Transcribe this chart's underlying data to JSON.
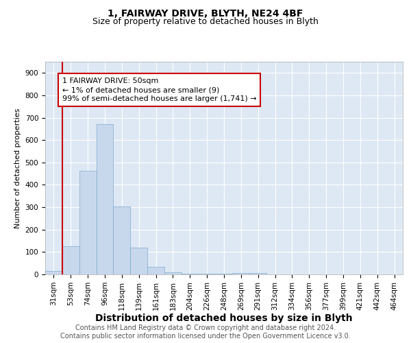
{
  "title_line1": "1, FAIRWAY DRIVE, BLYTH, NE24 4BF",
  "title_line2": "Size of property relative to detached houses in Blyth",
  "xlabel": "Distribution of detached houses by size in Blyth",
  "ylabel": "Number of detached properties",
  "bin_labels": [
    "31sqm",
    "53sqm",
    "74sqm",
    "96sqm",
    "118sqm",
    "139sqm",
    "161sqm",
    "183sqm",
    "204sqm",
    "226sqm",
    "248sqm",
    "269sqm",
    "291sqm",
    "312sqm",
    "334sqm",
    "356sqm",
    "377sqm",
    "399sqm",
    "421sqm",
    "442sqm",
    "464sqm"
  ],
  "bar_values": [
    15,
    125,
    462,
    672,
    302,
    120,
    35,
    10,
    2,
    2,
    2,
    5,
    5,
    0,
    0,
    0,
    0,
    0,
    0,
    0,
    0
  ],
  "bar_color": "#c8d8ec",
  "bar_edge_color": "#7baad0",
  "background_color": "#dde8f4",
  "grid_color": "#ffffff",
  "annotation_box_text": "1 FAIRWAY DRIVE: 50sqm\n← 1% of detached houses are smaller (9)\n99% of semi-detached houses are larger (1,741) →",
  "annotation_box_color": "#ffffff",
  "annotation_box_edge_color": "#cc0000",
  "property_line_color": "#cc0000",
  "property_line_x": 0.5,
  "ylim": [
    0,
    950
  ],
  "yticks": [
    0,
    100,
    200,
    300,
    400,
    500,
    600,
    700,
    800,
    900
  ],
  "footer_text": "Contains HM Land Registry data © Crown copyright and database right 2024.\nContains public sector information licensed under the Open Government Licence v3.0.",
  "title_fontsize": 10,
  "subtitle_fontsize": 9,
  "xlabel_fontsize": 10,
  "ylabel_fontsize": 8,
  "tick_fontsize": 7.5,
  "footer_fontsize": 7,
  "ann_fontsize": 8
}
